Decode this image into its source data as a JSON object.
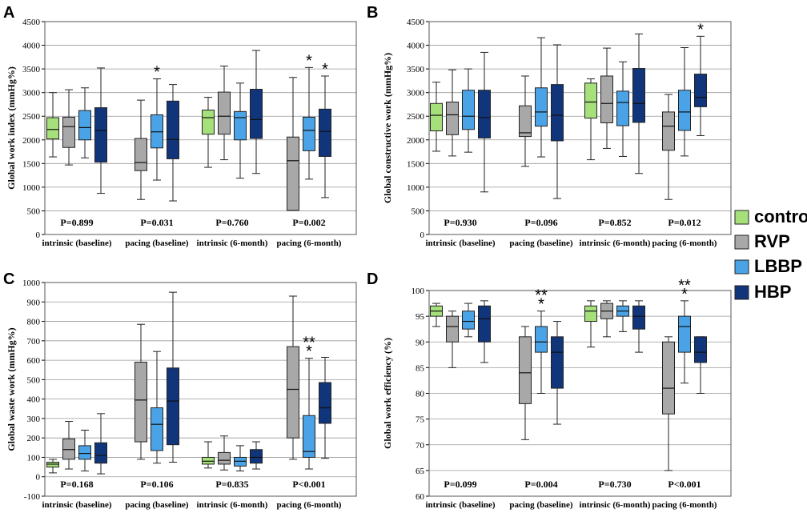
{
  "colors": {
    "control": "#a6e07a",
    "RVP": "#a8a8a8",
    "LBBP": "#4aa3e6",
    "HBP": "#11357a"
  },
  "legend": {
    "items": [
      {
        "name": "control",
        "color": "#a6e07a"
      },
      {
        "name": "RVP",
        "color": "#a8a8a8"
      },
      {
        "name": "LBBP",
        "color": "#4aa3e6"
      },
      {
        "name": "HBP",
        "color": "#11357a"
      }
    ]
  },
  "chart_data": [
    {
      "panel": "A",
      "type": "box",
      "ylabel": "Global work index (mmHg%)",
      "ylim": [
        0,
        4500
      ],
      "ytick_step": 500,
      "categories": [
        "intrinsic (baseline)",
        "pacing (baseline)",
        "intrinsic (6-month)",
        "pacing (6-month)"
      ],
      "p_values": [
        "P=0.899",
        "P=0.031",
        "P=0.760",
        "P=0.002"
      ],
      "groups": [
        {
          "boxes": [
            {
              "series": "control",
              "whisker_low": 1640,
              "q1": 2020,
              "median": 2220,
              "q3": 2470,
              "whisker_high": 3000
            },
            {
              "series": "RVP",
              "whisker_low": 1470,
              "q1": 1840,
              "median": 2280,
              "q3": 2480,
              "whisker_high": 3060
            },
            {
              "series": "LBBP",
              "whisker_low": 1620,
              "q1": 2000,
              "median": 2260,
              "q3": 2620,
              "whisker_high": 3100
            },
            {
              "series": "HBP",
              "whisker_low": 870,
              "q1": 1530,
              "median": 2200,
              "q3": 2680,
              "whisker_high": 3520
            }
          ]
        },
        {
          "boxes": [
            {
              "series": "RVP",
              "whisker_low": 740,
              "q1": 1350,
              "median": 1520,
              "q3": 2030,
              "whisker_high": 2840
            },
            {
              "series": "LBBP",
              "whisker_low": 1150,
              "q1": 1830,
              "median": 2170,
              "q3": 2530,
              "whisker_high": 3290,
              "stars": "*"
            },
            {
              "series": "HBP",
              "whisker_low": 710,
              "q1": 1600,
              "median": 2010,
              "q3": 2820,
              "whisker_high": 3170
            }
          ]
        },
        {
          "boxes": [
            {
              "series": "control",
              "whisker_low": 1420,
              "q1": 2120,
              "median": 2470,
              "q3": 2630,
              "whisker_high": 2900
            },
            {
              "series": "RVP",
              "whisker_low": 1580,
              "q1": 2120,
              "median": 2500,
              "q3": 3010,
              "whisker_high": 3560
            },
            {
              "series": "LBBP",
              "whisker_low": 1190,
              "q1": 2000,
              "median": 2470,
              "q3": 2600,
              "whisker_high": 3200
            },
            {
              "series": "HBP",
              "whisker_low": 1290,
              "q1": 2030,
              "median": 2430,
              "q3": 3070,
              "whisker_high": 3890
            }
          ]
        },
        {
          "boxes": [
            {
              "series": "RVP",
              "whisker_low": 510,
              "q1": 510,
              "median": 1560,
              "q3": 2060,
              "whisker_high": 3320
            },
            {
              "series": "LBBP",
              "whisker_low": 1170,
              "q1": 1770,
              "median": 2200,
              "q3": 2480,
              "whisker_high": 3530,
              "stars": "*"
            },
            {
              "series": "HBP",
              "whisker_low": 780,
              "q1": 1650,
              "median": 2180,
              "q3": 2650,
              "whisker_high": 3350,
              "stars": "*"
            }
          ]
        }
      ]
    },
    {
      "panel": "B",
      "type": "box",
      "ylabel": "Global constructive work (mmHg%)",
      "ylim": [
        0,
        4500
      ],
      "ytick_step": 500,
      "categories": [
        "intrinsic (baseline)",
        "pacing (baseline)",
        "intrinsic (6-month)",
        "pacing (6-month)"
      ],
      "p_values": [
        "P=0.930",
        "P=0.096",
        "P=0.852",
        "P=0.012"
      ],
      "groups": [
        {
          "boxes": [
            {
              "series": "control",
              "whisker_low": 1760,
              "q1": 2190,
              "median": 2520,
              "q3": 2770,
              "whisker_high": 3220
            },
            {
              "series": "RVP",
              "whisker_low": 1660,
              "q1": 2110,
              "median": 2530,
              "q3": 2800,
              "whisker_high": 3480
            },
            {
              "series": "LBBP",
              "whisker_low": 1740,
              "q1": 2220,
              "median": 2500,
              "q3": 3050,
              "whisker_high": 3500
            },
            {
              "series": "HBP",
              "whisker_low": 900,
              "q1": 2040,
              "median": 2470,
              "q3": 3050,
              "whisker_high": 3850
            }
          ]
        },
        {
          "boxes": [
            {
              "series": "RVP",
              "whisker_low": 1440,
              "q1": 2070,
              "median": 2150,
              "q3": 2720,
              "whisker_high": 3350
            },
            {
              "series": "LBBP",
              "whisker_low": 1640,
              "q1": 2290,
              "median": 2590,
              "q3": 3100,
              "whisker_high": 4160
            },
            {
              "series": "HBP",
              "whisker_low": 760,
              "q1": 1980,
              "median": 2520,
              "q3": 3170,
              "whisker_high": 4010
            }
          ]
        },
        {
          "boxes": [
            {
              "series": "control",
              "whisker_low": 1580,
              "q1": 2460,
              "median": 2800,
              "q3": 3200,
              "whisker_high": 3290
            },
            {
              "series": "RVP",
              "whisker_low": 1820,
              "q1": 2360,
              "median": 2770,
              "q3": 3350,
              "whisker_high": 3940
            },
            {
              "series": "LBBP",
              "whisker_low": 1650,
              "q1": 2300,
              "median": 2790,
              "q3": 3030,
              "whisker_high": 3650
            },
            {
              "series": "HBP",
              "whisker_low": 1290,
              "q1": 2370,
              "median": 2770,
              "q3": 3510,
              "whisker_high": 4240
            }
          ]
        },
        {
          "boxes": [
            {
              "series": "RVP",
              "whisker_low": 740,
              "q1": 1780,
              "median": 2290,
              "q3": 2590,
              "whisker_high": 2960
            },
            {
              "series": "LBBP",
              "whisker_low": 1660,
              "q1": 2200,
              "median": 2590,
              "q3": 3050,
              "whisker_high": 3950
            },
            {
              "series": "HBP",
              "whisker_low": 2090,
              "q1": 2700,
              "median": 2900,
              "q3": 3390,
              "whisker_high": 4190,
              "stars": "*"
            }
          ]
        }
      ]
    },
    {
      "panel": "C",
      "type": "box",
      "ylabel": "Global waste work (mmHg%)",
      "ylim": [
        -100,
        1000
      ],
      "ytick_step": 100,
      "categories": [
        "intrinsic (baseline)",
        "pacing (baseline)",
        "intrinsic (6-month)",
        "pacing (6-month)"
      ],
      "p_values": [
        "P=0.168",
        "P=0.106",
        "P=0.835",
        "P<0.001"
      ],
      "groups": [
        {
          "boxes": [
            {
              "series": "control",
              "whisker_low": 20,
              "q1": 50,
              "median": 65,
              "q3": 75,
              "whisker_high": 90
            },
            {
              "series": "RVP",
              "whisker_low": 40,
              "q1": 90,
              "median": 140,
              "q3": 195,
              "whisker_high": 285
            },
            {
              "series": "LBBP",
              "whisker_low": 30,
              "q1": 90,
              "median": 120,
              "q3": 160,
              "whisker_high": 240
            },
            {
              "series": "HBP",
              "whisker_low": 15,
              "q1": 70,
              "median": 110,
              "q3": 175,
              "whisker_high": 325
            }
          ]
        },
        {
          "boxes": [
            {
              "series": "RVP",
              "whisker_low": 90,
              "q1": 180,
              "median": 395,
              "q3": 590,
              "whisker_high": 785
            },
            {
              "series": "LBBP",
              "whisker_low": 70,
              "q1": 135,
              "median": 270,
              "q3": 355,
              "whisker_high": 645
            },
            {
              "series": "HBP",
              "whisker_low": 75,
              "q1": 165,
              "median": 390,
              "q3": 560,
              "whisker_high": 950
            }
          ]
        },
        {
          "boxes": [
            {
              "series": "control",
              "whisker_low": 45,
              "q1": 65,
              "median": 80,
              "q3": 100,
              "whisker_high": 180
            },
            {
              "series": "RVP",
              "whisker_low": 35,
              "q1": 65,
              "median": 85,
              "q3": 125,
              "whisker_high": 210
            },
            {
              "series": "LBBP",
              "whisker_low": 30,
              "q1": 55,
              "median": 80,
              "q3": 100,
              "whisker_high": 160
            },
            {
              "series": "HBP",
              "whisker_low": 40,
              "q1": 70,
              "median": 100,
              "q3": 140,
              "whisker_high": 180
            }
          ]
        },
        {
          "boxes": [
            {
              "series": "RVP",
              "whisker_low": 90,
              "q1": 200,
              "median": 450,
              "q3": 670,
              "whisker_high": 930
            },
            {
              "series": "LBBP",
              "whisker_low": 40,
              "q1": 100,
              "median": 130,
              "q3": 315,
              "whisker_high": 610,
              "stars": "**\n*"
            },
            {
              "series": "HBP",
              "whisker_low": 95,
              "q1": 275,
              "median": 355,
              "q3": 485,
              "whisker_high": 615
            }
          ]
        }
      ]
    },
    {
      "panel": "D",
      "type": "box",
      "ylabel": "Global work efficiency (%)",
      "ylim": [
        60,
        100
      ],
      "ytick_step": 5,
      "categories": [
        "intrinsic (baseline)",
        "pacing (baseline)",
        "intrinsic (6-month)",
        "pacing (6-month)"
      ],
      "p_values": [
        "P=0.099",
        "P=0.004",
        "P=0.730",
        "P<0.001"
      ],
      "groups": [
        {
          "boxes": [
            {
              "series": "control",
              "whisker_low": 93,
              "q1": 95,
              "median": 96,
              "q3": 97,
              "whisker_high": 97.5
            },
            {
              "series": "RVP",
              "whisker_low": 85,
              "q1": 90,
              "median": 93,
              "q3": 95,
              "whisker_high": 96
            },
            {
              "series": "LBBP",
              "whisker_low": 91,
              "q1": 92.5,
              "median": 94,
              "q3": 96,
              "whisker_high": 97.5
            },
            {
              "series": "HBP",
              "whisker_low": 86,
              "q1": 90,
              "median": 94.5,
              "q3": 97,
              "whisker_high": 98
            }
          ]
        },
        {
          "boxes": [
            {
              "series": "RVP",
              "whisker_low": 71,
              "q1": 78,
              "median": 84,
              "q3": 91,
              "whisker_high": 93
            },
            {
              "series": "LBBP",
              "whisker_low": 80,
              "q1": 88,
              "median": 90,
              "q3": 93,
              "whisker_high": 96,
              "stars": "**\n*"
            },
            {
              "series": "HBP",
              "whisker_low": 74,
              "q1": 81,
              "median": 88,
              "q3": 91,
              "whisker_high": 94
            }
          ]
        },
        {
          "boxes": [
            {
              "series": "control",
              "whisker_low": 89,
              "q1": 94,
              "median": 96,
              "q3": 97,
              "whisker_high": 98
            },
            {
              "series": "RVP",
              "whisker_low": 91,
              "q1": 94.5,
              "median": 96,
              "q3": 97.5,
              "whisker_high": 98
            },
            {
              "series": "LBBP",
              "whisker_low": 92,
              "q1": 95,
              "median": 96,
              "q3": 97,
              "whisker_high": 98
            },
            {
              "series": "HBP",
              "whisker_low": 88,
              "q1": 92.5,
              "median": 95,
              "q3": 97,
              "whisker_high": 98
            }
          ]
        },
        {
          "boxes": [
            {
              "series": "RVP",
              "whisker_low": 65,
              "q1": 76,
              "median": 81,
              "q3": 90,
              "whisker_high": 91
            },
            {
              "series": "LBBP",
              "whisker_low": 82,
              "q1": 88,
              "median": 93,
              "q3": 95,
              "whisker_high": 98,
              "stars": "**\n*"
            },
            {
              "series": "HBP",
              "whisker_low": 80,
              "q1": 86,
              "median": 88,
              "q3": 91,
              "whisker_high": 91
            }
          ]
        }
      ]
    }
  ]
}
